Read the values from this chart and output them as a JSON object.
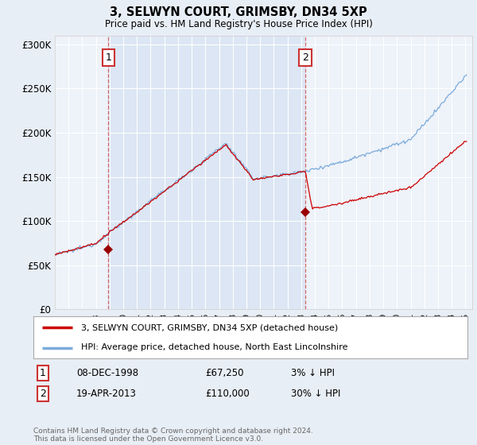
{
  "title": "3, SELWYN COURT, GRIMSBY, DN34 5XP",
  "subtitle": "Price paid vs. HM Land Registry's House Price Index (HPI)",
  "ylim": [
    0,
    310000
  ],
  "yticks": [
    0,
    50000,
    100000,
    150000,
    200000,
    250000,
    300000
  ],
  "ytick_labels": [
    "£0",
    "£50K",
    "£100K",
    "£150K",
    "£200K",
    "£250K",
    "£300K"
  ],
  "background_color": "#e8eef5",
  "plot_bg_color": "#eef2f9",
  "shade_color": "#dce6f4",
  "sale1_date_x": 1998.92,
  "sale1_price": 67250,
  "sale1_label": "1",
  "sale2_date_x": 2013.3,
  "sale2_price": 110000,
  "sale2_label": "2",
  "legend_line1": "3, SELWYN COURT, GRIMSBY, DN34 5XP (detached house)",
  "legend_line2": "HPI: Average price, detached house, North East Lincolnshire",
  "table_row1": [
    "1",
    "08-DEC-1998",
    "£67,250",
    "3% ↓ HPI"
  ],
  "table_row2": [
    "2",
    "19-APR-2013",
    "£110,000",
    "30% ↓ HPI"
  ],
  "footer": "Contains HM Land Registry data © Crown copyright and database right 2024.\nThis data is licensed under the Open Government Licence v3.0.",
  "red_color": "#cc0000",
  "blue_color": "#7aabda",
  "marker_color": "#990000",
  "xlim_left": 1995.0,
  "xlim_right": 2025.5
}
